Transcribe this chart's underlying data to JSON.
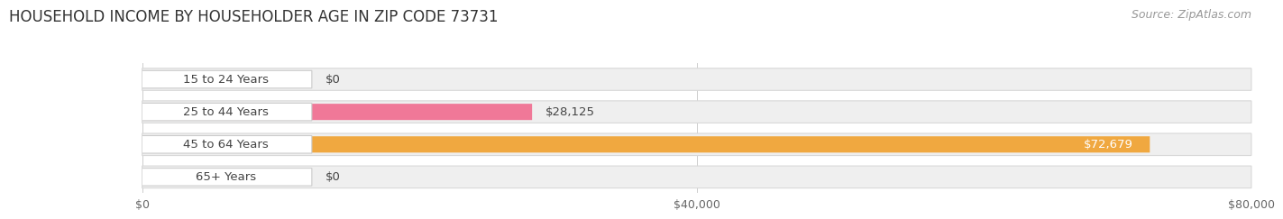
{
  "title": "HOUSEHOLD INCOME BY HOUSEHOLDER AGE IN ZIP CODE 73731",
  "source": "Source: ZipAtlas.com",
  "categories": [
    "15 to 24 Years",
    "25 to 44 Years",
    "45 to 64 Years",
    "65+ Years"
  ],
  "values": [
    0,
    28125,
    72679,
    0
  ],
  "bar_colors": [
    "#a8a8cc",
    "#f07898",
    "#f0a840",
    "#f09898"
  ],
  "track_color": "#efefef",
  "track_edge_color": "#d8d8d8",
  "pill_color": "#ffffff",
  "pill_edge_color": "#cccccc",
  "xlim": [
    0,
    80000
  ],
  "xticks": [
    0,
    40000,
    80000
  ],
  "xtick_labels": [
    "$0",
    "$40,000",
    "$80,000"
  ],
  "background_color": "#ffffff",
  "title_fontsize": 12,
  "bar_label_fontsize": 9.5,
  "value_fontsize": 9.5,
  "source_fontsize": 9,
  "axis_label_fontsize": 9
}
